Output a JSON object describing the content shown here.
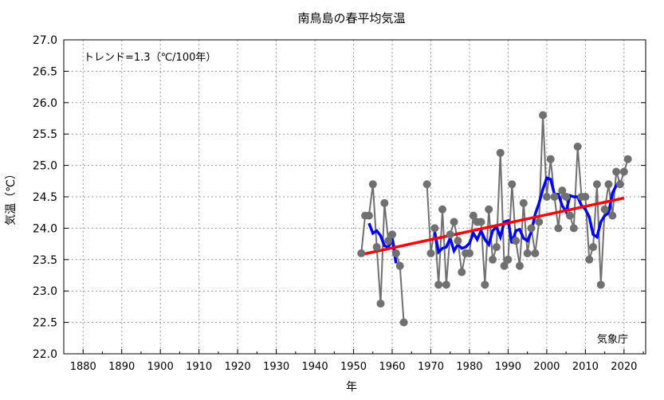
{
  "chart_data": {
    "type": "line",
    "title": "南鳥島の春平均気温",
    "xlabel": "年",
    "ylabel": "気温（℃）",
    "annotation": "トレンド=1.3（℃/100年）",
    "credit": "気象庁",
    "xlim": [
      1875,
      2025.6
    ],
    "ylim": [
      22.0,
      27.0
    ],
    "grid": true,
    "xticks": [
      1880,
      1890,
      1900,
      1910,
      1920,
      1930,
      1940,
      1950,
      1960,
      1970,
      1980,
      1990,
      2000,
      2010,
      2020
    ],
    "yticks": [
      "22.0",
      "22.5",
      "23.0",
      "23.5",
      "24.0",
      "24.5",
      "25.0",
      "25.5",
      "26.0",
      "26.5",
      "27.0"
    ],
    "series": [
      {
        "role": "annual",
        "color": "#707070",
        "points": [
          [
            1952,
            23.6
          ],
          [
            1953,
            24.2
          ],
          [
            1954,
            24.2
          ],
          [
            1955,
            24.7
          ],
          [
            1956,
            23.7
          ],
          [
            1957,
            22.8
          ],
          [
            1958,
            24.4
          ],
          [
            1959,
            23.8
          ],
          [
            1960,
            23.9
          ],
          [
            1961,
            23.6
          ],
          [
            1962,
            23.4
          ],
          [
            1963,
            22.5
          ],
          [
            1969,
            24.7
          ],
          [
            1970,
            23.6
          ],
          [
            1971,
            24.0
          ],
          [
            1972,
            23.1
          ],
          [
            1973,
            24.3
          ],
          [
            1974,
            23.1
          ],
          [
            1975,
            23.9
          ],
          [
            1976,
            24.1
          ],
          [
            1977,
            23.8
          ],
          [
            1978,
            23.3
          ],
          [
            1979,
            23.6
          ],
          [
            1980,
            23.6
          ],
          [
            1981,
            24.2
          ],
          [
            1982,
            24.1
          ],
          [
            1983,
            24.1
          ],
          [
            1984,
            23.1
          ],
          [
            1985,
            24.3
          ],
          [
            1986,
            23.5
          ],
          [
            1987,
            23.7
          ],
          [
            1988,
            25.2
          ],
          [
            1989,
            23.4
          ],
          [
            1990,
            23.5
          ],
          [
            1991,
            24.7
          ],
          [
            1992,
            23.8
          ],
          [
            1993,
            23.4
          ],
          [
            1994,
            24.4
          ],
          [
            1995,
            23.6
          ],
          [
            1996,
            24.0
          ],
          [
            1997,
            23.6
          ],
          [
            1998,
            24.1
          ],
          [
            1999,
            25.8
          ],
          [
            2000,
            24.5
          ],
          [
            2001,
            25.1
          ],
          [
            2002,
            24.5
          ],
          [
            2003,
            24.0
          ],
          [
            2004,
            24.6
          ],
          [
            2005,
            24.5
          ],
          [
            2006,
            24.2
          ],
          [
            2007,
            24.0
          ],
          [
            2008,
            25.3
          ],
          [
            2009,
            24.5
          ],
          [
            2010,
            24.5
          ],
          [
            2011,
            23.5
          ],
          [
            2012,
            23.7
          ],
          [
            2013,
            24.7
          ],
          [
            2014,
            23.1
          ],
          [
            2015,
            24.3
          ],
          [
            2016,
            24.7
          ],
          [
            2017,
            24.2
          ],
          [
            2018,
            24.9
          ],
          [
            2019,
            24.7
          ],
          [
            2020,
            24.9
          ],
          [
            2021,
            25.1
          ]
        ]
      },
      {
        "role": "5-year running mean",
        "color": "#0000ff"
      },
      {
        "role": "trend",
        "color": "#ff0000",
        "points": [
          [
            1952,
            23.58
          ],
          [
            2020,
            24.48
          ]
        ]
      }
    ]
  }
}
